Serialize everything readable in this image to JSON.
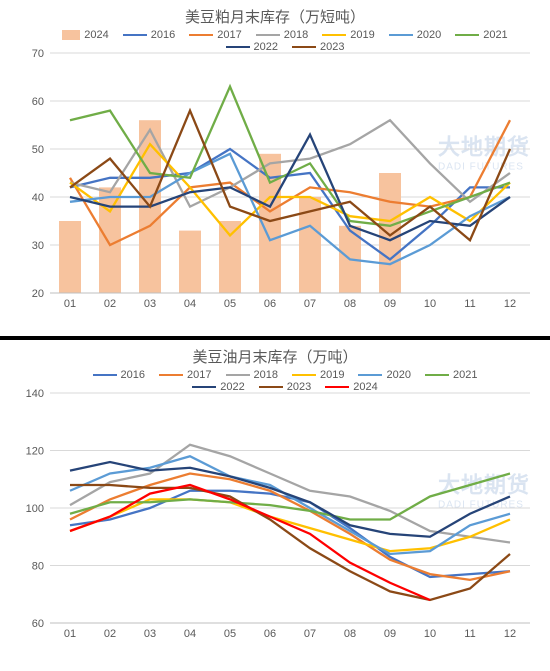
{
  "watermark": {
    "cn": "大地期货",
    "en": "DADI FUTURES"
  },
  "common": {
    "background": "#ffffff",
    "grid_color": "#d9d9d9",
    "axis_text_color": "#595959",
    "title_fontsize": 15,
    "label_fontsize": 11,
    "legend_fontsize": 11,
    "line_width": 2.3,
    "x_categories": [
      "01",
      "02",
      "03",
      "04",
      "05",
      "06",
      "07",
      "08",
      "09",
      "10",
      "11",
      "12"
    ]
  },
  "top_chart": {
    "title": "美豆粕月末库存（万短吨）",
    "ylim": [
      20,
      70
    ],
    "ytick_step": 10,
    "bar_series": {
      "name": "2024",
      "color": "#f7c39e",
      "values": [
        35,
        42,
        56,
        33,
        35,
        49,
        40,
        34,
        45,
        null,
        null,
        null
      ]
    },
    "line_series": [
      {
        "name": "2016",
        "color": "#4574c4",
        "values": [
          42,
          44,
          44,
          45,
          50,
          44,
          45,
          33,
          27,
          34,
          42,
          42
        ]
      },
      {
        "name": "2017",
        "color": "#ec7d31",
        "values": [
          44,
          30,
          34,
          42,
          43,
          37,
          42,
          41,
          39,
          38,
          40,
          56
        ]
      },
      {
        "name": "2018",
        "color": "#a5a5a5",
        "values": [
          43,
          41,
          54,
          38,
          42,
          47,
          48,
          51,
          56,
          47,
          39,
          45
        ]
      },
      {
        "name": "2019",
        "color": "#ffc000",
        "values": [
          43,
          37,
          51,
          42,
          32,
          40,
          40,
          36,
          35,
          40,
          35,
          43
        ]
      },
      {
        "name": "2020",
        "color": "#5b9bd5",
        "values": [
          39,
          40,
          40,
          45,
          49,
          31,
          34,
          27,
          26,
          30,
          36,
          40
        ]
      },
      {
        "name": "2021",
        "color": "#70ad47",
        "values": [
          56,
          58,
          45,
          44,
          63,
          43,
          47,
          35,
          34,
          37,
          40,
          43
        ]
      },
      {
        "name": "2022",
        "color": "#264478",
        "values": [
          40,
          38,
          38,
          41,
          42,
          38,
          53,
          34,
          31,
          35,
          34,
          40
        ]
      },
      {
        "name": "2023",
        "color": "#8b4916",
        "values": [
          42,
          48,
          38,
          58,
          38,
          35,
          37,
          39,
          32,
          38,
          31,
          50
        ]
      }
    ]
  },
  "bottom_chart": {
    "title": "美豆油月末库存（万吨）",
    "ylim": [
      60,
      140
    ],
    "ytick_step": 20,
    "line_series": [
      {
        "name": "2016",
        "color": "#4574c4",
        "values": [
          94,
          96,
          100,
          106,
          106,
          105,
          102,
          93,
          83,
          76,
          77,
          78
        ]
      },
      {
        "name": "2017",
        "color": "#ec7d31",
        "values": [
          96,
          103,
          108,
          112,
          110,
          106,
          99,
          91,
          82,
          77,
          75,
          78
        ]
      },
      {
        "name": "2018",
        "color": "#a5a5a5",
        "values": [
          101,
          109,
          112,
          122,
          118,
          112,
          106,
          104,
          99,
          92,
          90,
          88
        ]
      },
      {
        "name": "2019",
        "color": "#ffc000",
        "values": [
          92,
          97,
          103,
          103,
          102,
          97,
          93,
          89,
          85,
          86,
          90,
          96
        ]
      },
      {
        "name": "2020",
        "color": "#5b9bd5",
        "values": [
          106,
          112,
          114,
          118,
          111,
          108,
          100,
          92,
          84,
          85,
          94,
          98
        ]
      },
      {
        "name": "2021",
        "color": "#70ad47",
        "values": [
          98,
          102,
          102,
          103,
          102,
          101,
          99,
          96,
          96,
          104,
          108,
          112
        ]
      },
      {
        "name": "2022",
        "color": "#264478",
        "values": [
          113,
          116,
          113,
          114,
          111,
          107,
          102,
          94,
          91,
          90,
          98,
          104
        ]
      },
      {
        "name": "2023",
        "color": "#8b4916",
        "values": [
          108,
          108,
          107,
          107,
          104,
          96,
          86,
          78,
          71,
          68,
          72,
          84
        ]
      },
      {
        "name": "2024",
        "color": "#ff0000",
        "values": [
          92,
          97,
          105,
          108,
          103,
          97,
          91,
          81,
          74,
          68,
          null,
          null
        ]
      }
    ]
  }
}
